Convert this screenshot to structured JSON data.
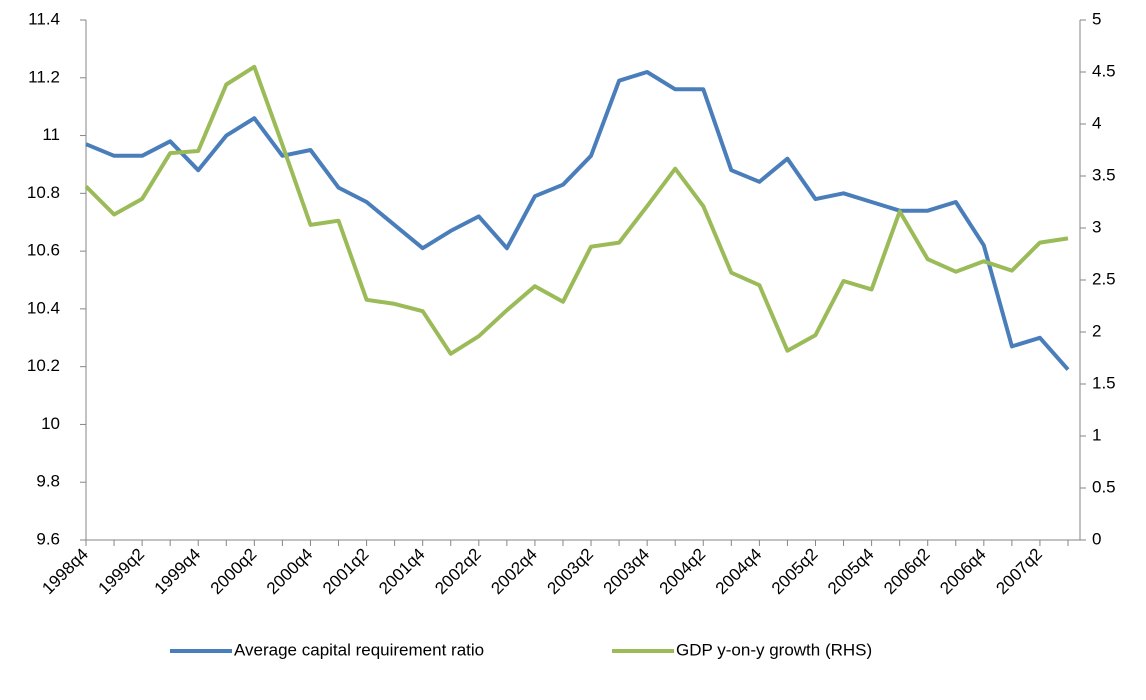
{
  "chart_data": {
    "type": "line",
    "categories": [
      "1998q4",
      null,
      "1999q2",
      null,
      "1999q4",
      null,
      "2000q2",
      null,
      "2000q4",
      null,
      "2001q2",
      null,
      "2001q4",
      null,
      "2002q2",
      null,
      "2002q4",
      null,
      "2003q2",
      null,
      "2003q4",
      null,
      "2004q2",
      null,
      "2004q4",
      null,
      "2005q2",
      null,
      "2005q4",
      null,
      "2006q2",
      null,
      "2006q4",
      null,
      "2007q2",
      null
    ],
    "series": [
      {
        "name": "Average capital requirement ratio",
        "color": "#4a7ebb",
        "axis": "y",
        "values": [
          10.97,
          10.93,
          10.93,
          10.98,
          10.88,
          11.0,
          11.06,
          10.93,
          10.95,
          10.82,
          10.77,
          10.69,
          10.61,
          10.67,
          10.72,
          10.61,
          10.79,
          10.83,
          10.93,
          11.19,
          11.22,
          11.16,
          11.16,
          10.88,
          10.84,
          10.92,
          10.78,
          10.8,
          10.77,
          10.74,
          10.74,
          10.77,
          10.62,
          10.27,
          10.3,
          10.19
        ]
      },
      {
        "name": "GDP y-on-y growth (RHS)",
        "color": "#9bbb59",
        "axis": "y2",
        "values": [
          3.4,
          3.13,
          3.28,
          3.72,
          3.74,
          4.38,
          4.55,
          3.8,
          3.03,
          3.07,
          2.31,
          2.27,
          2.2,
          1.79,
          1.96,
          2.21,
          2.44,
          2.29,
          2.82,
          2.86,
          3.21,
          3.57,
          3.21,
          2.57,
          2.45,
          1.82,
          1.97,
          2.49,
          2.41,
          3.16,
          2.7,
          2.58,
          2.68,
          2.59,
          2.86,
          2.9
        ]
      }
    ],
    "ylim": [
      9.6,
      11.4
    ],
    "yticks": [
      9.6,
      9.8,
      10,
      10.2,
      10.4,
      10.6,
      10.8,
      11,
      11.2,
      11.4
    ],
    "y2lim": [
      0,
      5
    ],
    "y2ticks": [
      0,
      0.5,
      1,
      1.5,
      2,
      2.5,
      3,
      3.5,
      4,
      4.5,
      5
    ],
    "grid": false,
    "legend": "bottom"
  }
}
